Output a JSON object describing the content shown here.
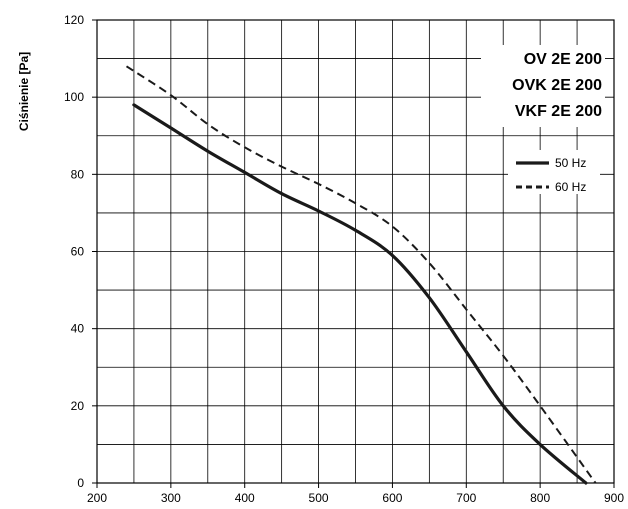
{
  "chart_data": {
    "type": "line",
    "title_lines": [
      "OV 2E 200",
      "OVK 2E 200",
      "VKF 2E 200"
    ],
    "xlabel": "",
    "ylabel": "Ciśnienie [Pa]",
    "xlim": [
      200,
      900
    ],
    "ylim": [
      0,
      120
    ],
    "xticks": [
      200,
      300,
      400,
      500,
      600,
      700,
      800,
      900
    ],
    "yticks": [
      0,
      20,
      40,
      60,
      80,
      100,
      120
    ],
    "x_minor_grid_step": 50,
    "y_minor_grid_step": 10,
    "grid": true,
    "legend_position": "top-right",
    "series": [
      {
        "name": "50 Hz",
        "style": "solid",
        "color": "#1a1a1a",
        "points": [
          [
            250,
            98
          ],
          [
            300,
            92
          ],
          [
            350,
            86
          ],
          [
            400,
            80.5
          ],
          [
            450,
            75
          ],
          [
            500,
            70.5
          ],
          [
            550,
            65.5
          ],
          [
            600,
            59
          ],
          [
            650,
            48
          ],
          [
            700,
            34
          ],
          [
            750,
            20
          ],
          [
            800,
            10
          ],
          [
            862,
            0
          ]
        ]
      },
      {
        "name": "60 Hz",
        "style": "dashed",
        "color": "#1a1a1a",
        "points": [
          [
            240,
            108
          ],
          [
            300,
            100.5
          ],
          [
            350,
            93
          ],
          [
            400,
            87
          ],
          [
            450,
            82
          ],
          [
            500,
            77.5
          ],
          [
            550,
            72.5
          ],
          [
            600,
            66.5
          ],
          [
            650,
            57
          ],
          [
            700,
            45
          ],
          [
            750,
            33
          ],
          [
            800,
            20
          ],
          [
            875,
            0
          ]
        ]
      }
    ]
  }
}
